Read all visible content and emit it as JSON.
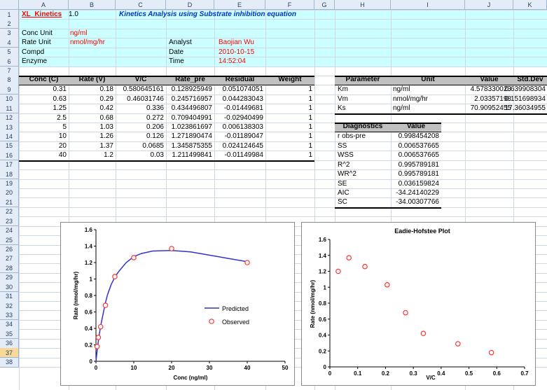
{
  "columns": [
    "A",
    "B",
    "C",
    "D",
    "E",
    "F",
    "G",
    "H",
    "I",
    "J",
    "K"
  ],
  "rows": [
    "1",
    "2",
    "3",
    "4",
    "5",
    "6",
    "7",
    "8",
    "9",
    "10",
    "11",
    "12",
    "13",
    "14",
    "15",
    "16",
    "17",
    "18",
    "19",
    "20",
    "21",
    "22",
    "23",
    "24",
    "25",
    "26",
    "27",
    "28",
    "29",
    "30",
    "31",
    "32",
    "33",
    "34",
    "35",
    "36",
    "37",
    "38"
  ],
  "selected_row": "37",
  "header": {
    "app_name": "XL_Kinetics",
    "version": "1.0",
    "title": "Kinetics Analysis using Substrate inhibition equation",
    "conc_unit_label": "Conc Unit",
    "conc_unit_value": "ng/ml",
    "rate_unit_label": "Rate Unit",
    "rate_unit_value": "nmol/mg/hr",
    "compd_label": "Compd",
    "enzyme_label": "Enzyme",
    "analyst_label": "Analyst",
    "analyst_value": "Baojian Wu",
    "date_label": "Date",
    "date_value": "2010-10-15",
    "time_label": "Time",
    "time_value": "14:52:04"
  },
  "data_table": {
    "headers": [
      "Conc (C)",
      "Rate (V)",
      "V/C",
      "Rate_pre",
      "Residual",
      "Weight"
    ],
    "rows": [
      [
        "0.31",
        "0.18",
        "0.580645161",
        "0.128925949",
        "0.051074051",
        "1"
      ],
      [
        "0.63",
        "0.29",
        "0.46031746",
        "0.245716957",
        "0.044283043",
        "1"
      ],
      [
        "1.25",
        "0.42",
        "0.336",
        "0.434496807",
        "-0.01449681",
        "1"
      ],
      [
        "2.5",
        "0.68",
        "0.272",
        "0.709404991",
        "-0.02940499",
        "1"
      ],
      [
        "5",
        "1.03",
        "0.206",
        "1.023861697",
        "0.006138303",
        "1"
      ],
      [
        "10",
        "1.26",
        "0.126",
        "1.271890474",
        "-0.01189047",
        "1"
      ],
      [
        "20",
        "1.37",
        "0.0685",
        "1.345875355",
        "0.024124645",
        "1"
      ],
      [
        "40",
        "1.2",
        "0.03",
        "1.211499841",
        "-0.01149984",
        "1"
      ]
    ]
  },
  "param_table": {
    "headers": [
      "Parameter",
      "Unit",
      "Value",
      "Std.Dev"
    ],
    "rows": [
      [
        "Km",
        "ng/ml",
        "4.578330023",
        "0.639908304"
      ],
      [
        "Vm",
        "nmol/mg/hr",
        "2.03357198",
        "0.151698934"
      ],
      [
        "Ks",
        "ng/ml",
        "70.90952455",
        "17.36034955"
      ]
    ]
  },
  "diag_table": {
    "headers": [
      "Diagnostics",
      "Value"
    ],
    "rows": [
      [
        "r obs-pre",
        "0.998454208"
      ],
      [
        "SS",
        "0.006537665"
      ],
      [
        "WSS",
        "0.006537665"
      ],
      [
        "R^2",
        "0.995789181"
      ],
      [
        "WR^2",
        "0.995789181"
      ],
      [
        "SE",
        "0.036159824"
      ],
      [
        "AIC",
        "-34.24140229"
      ],
      [
        "SC",
        "-34.00307766"
      ]
    ]
  },
  "chart_data": [
    {
      "type": "scatter",
      "title": "",
      "xlabel": "Conc (ng/ml)",
      "ylabel": "Rate (nmol/mg/hr)",
      "xlim": [
        0,
        50
      ],
      "ylim": [
        0,
        1.6
      ],
      "xticks": [
        "0",
        "10",
        "20",
        "30",
        "40",
        "50"
      ],
      "yticks": [
        "0",
        "0.2",
        "0.4",
        "0.6",
        "0.8",
        "1",
        "1.2",
        "1.4",
        "1.6"
      ],
      "legend": [
        "Predicted",
        "Observed"
      ],
      "legend_position": "bottom-right",
      "series": [
        {
          "name": "Predicted",
          "kind": "line",
          "x": [
            0,
            0.31,
            0.63,
            1,
            1.25,
            2,
            2.5,
            3,
            4,
            5,
            6,
            8,
            10,
            12,
            15,
            20,
            25,
            30,
            35,
            40
          ],
          "y": [
            0,
            0.129,
            0.246,
            0.36,
            0.434,
            0.6,
            0.709,
            0.8,
            0.93,
            1.024,
            1.09,
            1.2,
            1.272,
            1.31,
            1.34,
            1.346,
            1.33,
            1.29,
            1.25,
            1.211
          ]
        },
        {
          "name": "Observed",
          "kind": "markers",
          "x": [
            0.31,
            0.63,
            1.25,
            2.5,
            5,
            10,
            20,
            40
          ],
          "y": [
            0.18,
            0.29,
            0.42,
            0.68,
            1.03,
            1.26,
            1.37,
            1.2
          ]
        }
      ],
      "colors": {
        "line": "#3333cc",
        "marker": "#ff3333"
      }
    },
    {
      "type": "scatter",
      "title": "Eadie-Hofstee Plot",
      "xlabel": "V/C",
      "ylabel": "Rate (nmol/mg/hr)",
      "xlim": [
        0,
        0.7
      ],
      "ylim": [
        0,
        1.6
      ],
      "xticks": [
        "0",
        "0.1",
        "0.2",
        "0.3",
        "0.4",
        "0.5",
        "0.6",
        "0.7"
      ],
      "yticks": [
        "0",
        "0.2",
        "0.4",
        "0.6",
        "0.8",
        "1",
        "1.2",
        "1.4",
        "1.6"
      ],
      "series": [
        {
          "kind": "markers",
          "x": [
            0.03,
            0.0685,
            0.126,
            0.206,
            0.272,
            0.336,
            0.46031746,
            0.580645161
          ],
          "y": [
            1.2,
            1.37,
            1.26,
            1.03,
            0.68,
            0.42,
            0.29,
            0.18
          ]
        }
      ],
      "colors": {
        "marker": "#ff3333"
      }
    }
  ]
}
